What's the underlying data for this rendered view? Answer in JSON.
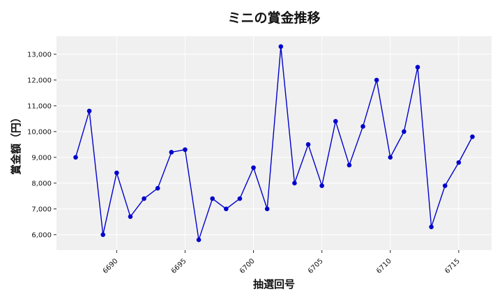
{
  "chart_data": {
    "type": "line",
    "title": "ミニの賞金推移",
    "xlabel": "抽選回号",
    "ylabel": "賞金額（円）",
    "x": [
      6687,
      6688,
      6689,
      6690,
      6691,
      6692,
      6693,
      6694,
      6695,
      6696,
      6697,
      6698,
      6699,
      6700,
      6701,
      6702,
      6703,
      6704,
      6705,
      6706,
      6707,
      6708,
      6709,
      6710,
      6711,
      6712,
      6713,
      6714,
      6715,
      6716
    ],
    "series": [
      {
        "values": [
          9000,
          10800,
          6000,
          8400,
          6700,
          7400,
          7800,
          9200,
          9300,
          5800,
          7400,
          7000,
          7400,
          8600,
          7000,
          13300,
          8000,
          9500,
          7900,
          10400,
          8700,
          10200,
          12000,
          9000,
          10000,
          12500,
          6300,
          7900,
          8800,
          9800
        ],
        "color": "#0000cc"
      }
    ],
    "xlim": [
      6685.6,
      6717.4
    ],
    "ylim": [
      5400,
      13700
    ],
    "x_ticks": [
      6690,
      6695,
      6700,
      6705,
      6710,
      6715
    ],
    "y_ticks": [
      6000,
      7000,
      8000,
      9000,
      10000,
      11000,
      12000,
      13000
    ],
    "grid": true,
    "background": "#f0f0f0"
  }
}
